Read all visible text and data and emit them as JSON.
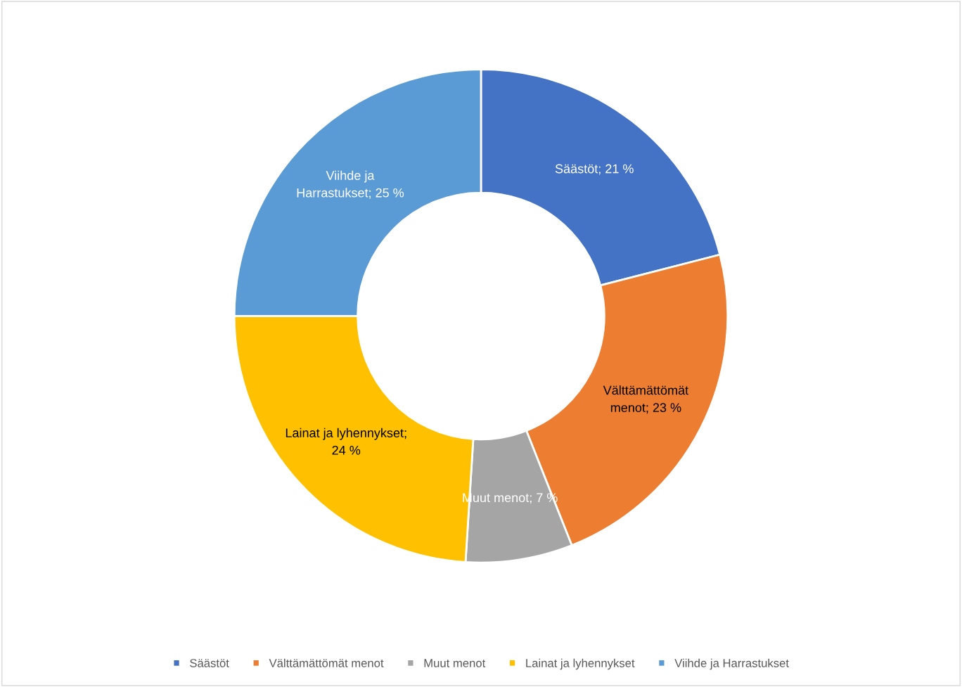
{
  "chart_data": {
    "type": "donut",
    "categories": [
      "Säästöt",
      "Välttämättömät menot",
      "Muut menot",
      "Lainat ja lyhennykset",
      "Viihde ja Harrastukset"
    ],
    "values": [
      21,
      23,
      7,
      24,
      25
    ],
    "colors": [
      "#4472c4",
      "#ed7d31",
      "#a5a5a5",
      "#ffc000",
      "#5b9bd5"
    ],
    "value_labels": [
      "Säästöt; 21 %",
      "Välttämättömät\nmenot; 23 %",
      "Muut menot; 7 %",
      "Lainat ja lyhennykset;\n24 %",
      "Viihde ja\nHarrastukset; 25 %"
    ],
    "legend": "bottom"
  }
}
